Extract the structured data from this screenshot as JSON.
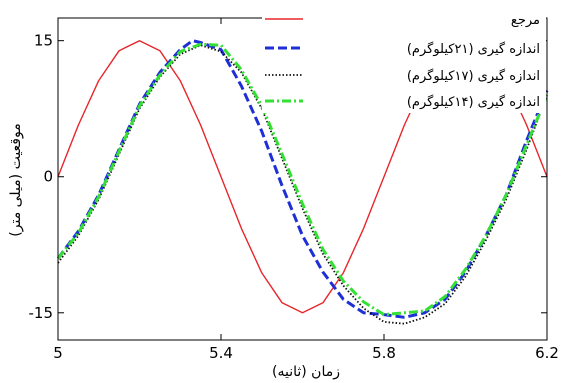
{
  "chart_data": {
    "type": "line",
    "xlabel": "زمان (ثانیه)",
    "ylabel": "موقعیت (میلی متر)",
    "xlim": [
      5,
      6.2
    ],
    "ylim": [
      -18,
      17.5
    ],
    "x_ticks": [
      {
        "value": 5,
        "label": "5"
      },
      {
        "value": 5.4,
        "label": "5.4"
      },
      {
        "value": 5.8,
        "label": "5.8"
      },
      {
        "value": 6.2,
        "label": "6.2"
      }
    ],
    "y_ticks": [
      {
        "value": 15,
        "label": "15"
      },
      {
        "value": 0,
        "label": "0"
      },
      {
        "value": -15,
        "label": "-15"
      }
    ],
    "grid": false,
    "legend_position": "top-right",
    "series": [
      {
        "name": "مرجع",
        "color": "#e8262b",
        "style": "solid",
        "x": [
          5.0,
          5.05,
          5.1,
          5.15,
          5.2,
          5.25,
          5.3,
          5.35,
          5.4,
          5.45,
          5.5,
          5.55,
          5.6,
          5.65,
          5.7,
          5.75,
          5.8,
          5.85,
          5.9,
          5.95,
          6.0,
          6.05,
          6.1,
          6.15,
          6.2
        ],
        "y": [
          0.0,
          5.7,
          10.6,
          13.9,
          15.0,
          13.9,
          10.6,
          5.7,
          0.0,
          -5.7,
          -10.6,
          -13.9,
          -15.0,
          -13.9,
          -10.6,
          -5.7,
          0.0,
          5.7,
          10.6,
          13.9,
          15.0,
          13.9,
          10.6,
          5.7,
          0.0
        ]
      },
      {
        "name": "اندازه گیری (۲۱کیلوگرم)",
        "color": "#1f2fd6",
        "style": "dashed",
        "x": [
          5.0,
          5.05,
          5.1,
          5.15,
          5.2,
          5.25,
          5.3,
          5.33,
          5.35,
          5.4,
          5.45,
          5.5,
          5.55,
          5.6,
          5.65,
          5.7,
          5.75,
          5.8,
          5.85,
          5.9,
          5.95,
          6.0,
          6.05,
          6.1,
          6.15,
          6.2
        ],
        "y": [
          -9.0,
          -6.0,
          -2.0,
          3.0,
          8.0,
          11.5,
          14.0,
          15.0,
          14.8,
          14.0,
          10.0,
          5.0,
          -1.0,
          -6.5,
          -10.5,
          -13.5,
          -15.0,
          -15.2,
          -15.5,
          -15.0,
          -13.5,
          -10.5,
          -6.5,
          -2.0,
          4.0,
          9.5
        ]
      },
      {
        "name": "اندازه گیری (۱۷کیلوگرم)",
        "color": "#111111",
        "style": "dotted",
        "x": [
          5.0,
          5.05,
          5.1,
          5.15,
          5.2,
          5.25,
          5.3,
          5.35,
          5.4,
          5.45,
          5.5,
          5.55,
          5.6,
          5.65,
          5.7,
          5.75,
          5.8,
          5.85,
          5.9,
          5.95,
          6.0,
          6.05,
          6.1,
          6.15,
          6.2
        ],
        "y": [
          -9.5,
          -6.5,
          -2.5,
          2.5,
          7.5,
          11.0,
          13.5,
          14.5,
          13.8,
          11.5,
          7.5,
          2.0,
          -3.5,
          -8.5,
          -12.0,
          -14.5,
          -16.0,
          -16.2,
          -15.5,
          -14.0,
          -11.0,
          -7.0,
          -2.5,
          3.0,
          9.0
        ]
      },
      {
        "name": "اندازه گیری (۱۴کیلوگرم)",
        "color": "#33e033",
        "style": "dashdot",
        "x": [
          5.0,
          5.05,
          5.1,
          5.15,
          5.2,
          5.25,
          5.3,
          5.35,
          5.4,
          5.45,
          5.5,
          5.55,
          5.6,
          5.65,
          5.7,
          5.75,
          5.8,
          5.85,
          5.9,
          5.95,
          6.0,
          6.05,
          6.1,
          6.15,
          6.2
        ],
        "y": [
          -9.0,
          -6.2,
          -2.2,
          2.8,
          7.8,
          11.2,
          13.8,
          14.6,
          14.5,
          11.8,
          7.8,
          2.5,
          -3.0,
          -8.0,
          -11.5,
          -13.8,
          -15.2,
          -15.0,
          -14.8,
          -13.2,
          -10.2,
          -6.5,
          -2.0,
          3.5,
          9.0
        ]
      }
    ]
  }
}
